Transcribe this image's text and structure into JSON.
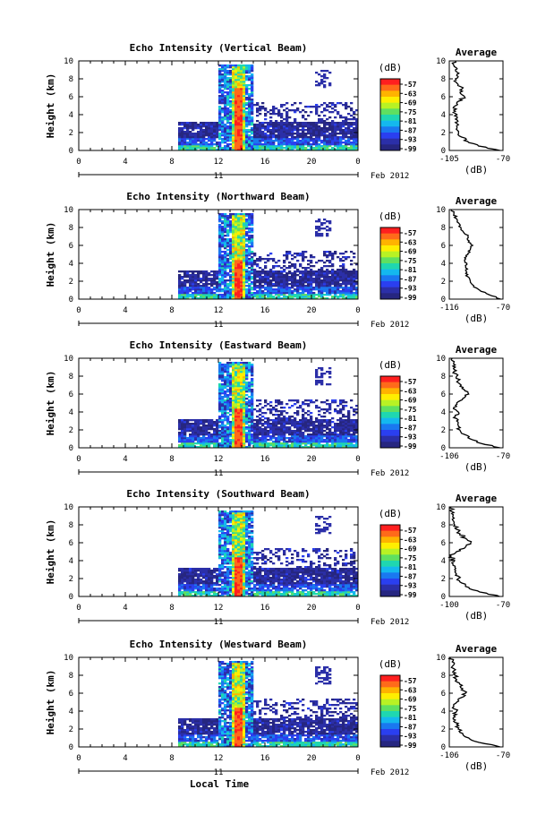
{
  "figure": {
    "xlabel": "Local Time",
    "date_label": "Feb 2012",
    "day_label": "11"
  },
  "colorbar": {
    "unit": "(dB)",
    "ticks": [
      "-57",
      "-63",
      "-69",
      "-75",
      "-81",
      "-87",
      "-93",
      "-99"
    ],
    "colors": [
      "#ff1f1f",
      "#ff6a1a",
      "#ffb300",
      "#ffee00",
      "#b8f224",
      "#5fe060",
      "#1fd7b0",
      "#14b8ee",
      "#1a78f0",
      "#2a3ff0",
      "#2b2fa8",
      "#262680"
    ]
  },
  "chart_data": [
    {
      "type": "heatmap",
      "title": "Echo Intensity (Vertical Beam)",
      "ylabel": "Height (km)",
      "xlim": [
        0,
        24
      ],
      "ylim": [
        0,
        10
      ],
      "xticks": [
        "0",
        "4",
        "8",
        "12",
        "16",
        "20",
        "0"
      ],
      "yticks": [
        "0",
        "2",
        "4",
        "6",
        "8",
        "10"
      ],
      "avg": {
        "title": "Average",
        "xlabel": "(dB)",
        "xlim": [
          -105,
          -70
        ],
        "xticks": [
          "-105",
          "-70"
        ],
        "profile": [
          [
            0,
            -72
          ],
          [
            0.5,
            -86
          ],
          [
            1,
            -93
          ],
          [
            1.5,
            -97
          ],
          [
            2,
            -99
          ],
          [
            2.5,
            -100
          ],
          [
            3,
            -100
          ],
          [
            3.5,
            -101
          ],
          [
            4,
            -100
          ],
          [
            4.5,
            -102
          ],
          [
            5,
            -101
          ],
          [
            5.5,
            -99
          ],
          [
            6,
            -95
          ],
          [
            6.5,
            -98
          ],
          [
            7,
            -96
          ],
          [
            7.5,
            -100
          ],
          [
            8,
            -101
          ],
          [
            8.5,
            -100
          ],
          [
            9,
            -101
          ],
          [
            9.5,
            -102
          ],
          [
            10,
            -101
          ]
        ]
      }
    },
    {
      "type": "heatmap",
      "title": "Echo Intensity (Northward Beam)",
      "ylabel": "Height (km)",
      "xlim": [
        0,
        24
      ],
      "ylim": [
        0,
        10
      ],
      "xticks": [
        "0",
        "4",
        "8",
        "12",
        "16",
        "20",
        "0"
      ],
      "yticks": [
        "0",
        "2",
        "4",
        "6",
        "8",
        "10"
      ],
      "avg": {
        "title": "Average",
        "xlabel": "(dB)",
        "xlim": [
          -116,
          -70
        ],
        "xticks": [
          "-116",
          "-70"
        ],
        "profile": [
          [
            0,
            -72
          ],
          [
            0.5,
            -82
          ],
          [
            1,
            -90
          ],
          [
            1.5,
            -95
          ],
          [
            2,
            -98
          ],
          [
            2.5,
            -100
          ],
          [
            3,
            -101
          ],
          [
            3.5,
            -102
          ],
          [
            4,
            -101
          ],
          [
            4.5,
            -102
          ],
          [
            5,
            -100
          ],
          [
            5.5,
            -98
          ],
          [
            6,
            -96
          ],
          [
            6.5,
            -99
          ],
          [
            7,
            -100
          ],
          [
            7.5,
            -104
          ],
          [
            8,
            -106
          ],
          [
            8.5,
            -108
          ],
          [
            9,
            -110
          ],
          [
            9.5,
            -112
          ],
          [
            10,
            -114
          ]
        ]
      }
    },
    {
      "type": "heatmap",
      "title": "Echo Intensity (Eastward Beam)",
      "ylabel": "Height (km)",
      "xlim": [
        0,
        24
      ],
      "ylim": [
        0,
        10
      ],
      "xticks": [
        "0",
        "4",
        "8",
        "12",
        "16",
        "20",
        "0"
      ],
      "yticks": [
        "0",
        "2",
        "4",
        "6",
        "8",
        "10"
      ],
      "avg": {
        "title": "Average",
        "xlabel": "(dB)",
        "xlim": [
          -106,
          -70
        ],
        "xticks": [
          "-106",
          "-70"
        ],
        "profile": [
          [
            0,
            -72
          ],
          [
            0.5,
            -85
          ],
          [
            1,
            -92
          ],
          [
            1.5,
            -96
          ],
          [
            2,
            -99
          ],
          [
            2.5,
            -100
          ],
          [
            3,
            -101
          ],
          [
            3.5,
            -102
          ],
          [
            4,
            -100
          ],
          [
            4.5,
            -103
          ],
          [
            5,
            -101
          ],
          [
            5.5,
            -97
          ],
          [
            6,
            -93
          ],
          [
            6.5,
            -96
          ],
          [
            7,
            -98
          ],
          [
            7.5,
            -100
          ],
          [
            8,
            -101
          ],
          [
            8.5,
            -103
          ],
          [
            9,
            -102
          ],
          [
            9.5,
            -103
          ],
          [
            10,
            -104
          ]
        ]
      }
    },
    {
      "type": "heatmap",
      "title": "Echo Intensity (Southward Beam)",
      "ylabel": "Height (km)",
      "xlim": [
        0,
        24
      ],
      "ylim": [
        0,
        10
      ],
      "xticks": [
        "0",
        "4",
        "8",
        "12",
        "16",
        "20",
        "0"
      ],
      "yticks": [
        "0",
        "2",
        "4",
        "6",
        "8",
        "10"
      ],
      "avg": {
        "title": "Average",
        "xlabel": "(dB)",
        "xlim": [
          -100,
          -70
        ],
        "xticks": [
          "-100",
          "-70"
        ],
        "profile": [
          [
            0,
            -72
          ],
          [
            0.5,
            -83
          ],
          [
            1,
            -89
          ],
          [
            1.5,
            -93
          ],
          [
            2,
            -95
          ],
          [
            2.5,
            -96
          ],
          [
            3,
            -97
          ],
          [
            3.5,
            -98
          ],
          [
            4,
            -97
          ],
          [
            4.5,
            -99
          ],
          [
            5,
            -96
          ],
          [
            5.5,
            -91
          ],
          [
            6,
            -88
          ],
          [
            6.5,
            -91
          ],
          [
            7,
            -94
          ],
          [
            7.5,
            -96
          ],
          [
            8,
            -97
          ],
          [
            8.5,
            -98
          ],
          [
            9,
            -98
          ],
          [
            9.5,
            -99
          ],
          [
            10,
            -99
          ]
        ]
      }
    },
    {
      "type": "heatmap",
      "title": "Echo Intensity (Westward Beam)",
      "ylabel": "Height (km)",
      "xlim": [
        0,
        24
      ],
      "ylim": [
        0,
        10
      ],
      "xticks": [
        "0",
        "4",
        "8",
        "12",
        "16",
        "20",
        "0"
      ],
      "yticks": [
        "0",
        "2",
        "4",
        "6",
        "8",
        "10"
      ],
      "avg": {
        "title": "Average",
        "xlabel": "(dB)",
        "xlim": [
          -106,
          -70
        ],
        "xticks": [
          "-106",
          "-70"
        ],
        "profile": [
          [
            0,
            -72
          ],
          [
            0.5,
            -86
          ],
          [
            1,
            -93
          ],
          [
            1.5,
            -97
          ],
          [
            2,
            -100
          ],
          [
            2.5,
            -101
          ],
          [
            3,
            -102
          ],
          [
            3.5,
            -103
          ],
          [
            4,
            -101
          ],
          [
            4.5,
            -103
          ],
          [
            5,
            -101
          ],
          [
            5.5,
            -98
          ],
          [
            6,
            -95
          ],
          [
            6.5,
            -97
          ],
          [
            7,
            -99
          ],
          [
            7.5,
            -101
          ],
          [
            8,
            -102
          ],
          [
            8.5,
            -103
          ],
          [
            9,
            -104
          ],
          [
            9.5,
            -104
          ],
          [
            10,
            -105
          ]
        ]
      }
    }
  ]
}
